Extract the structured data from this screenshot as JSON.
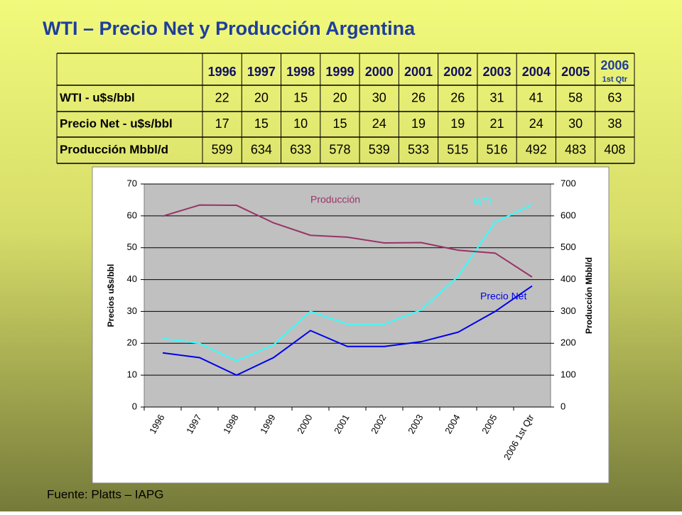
{
  "title": "WTI – Precio Net y Producción Argentina",
  "table": {
    "columns": [
      "1996",
      "1997",
      "1998",
      "1999",
      "2000",
      "2001",
      "2002",
      "2003",
      "2004",
      "2005",
      "2006"
    ],
    "column_note": "1st Qtr",
    "rows": [
      {
        "label": "WTI - u$s/bbl",
        "values": [
          22,
          20,
          15,
          20,
          30,
          26,
          26,
          31,
          41,
          58,
          63
        ]
      },
      {
        "label": "Precio Net - u$s/bbl",
        "values": [
          17,
          15,
          10,
          15,
          24,
          19,
          19,
          21,
          24,
          30,
          38
        ]
      },
      {
        "label": "Producción Mbbl/d",
        "values": [
          599,
          634,
          633,
          578,
          539,
          533,
          515,
          516,
          492,
          483,
          408
        ]
      }
    ]
  },
  "chart_data": {
    "type": "line",
    "categories": [
      "1996",
      "1997",
      "1998",
      "1999",
      "2000",
      "2001",
      "2002",
      "2003",
      "2004",
      "2005",
      "2006 1st Qtr"
    ],
    "y_label": "Precios u$s/bbl",
    "y2_label": "Producción Mbbl/d",
    "ylim": [
      0,
      70
    ],
    "yticks": [
      0,
      10,
      20,
      30,
      40,
      50,
      60,
      70
    ],
    "y2lim": [
      0,
      700
    ],
    "y2ticks": [
      0,
      100,
      200,
      300,
      400,
      500,
      600,
      700
    ],
    "grid": true,
    "series": [
      {
        "name": "WTI",
        "color": "#33ffff",
        "values": [
          21.5,
          20,
          14.5,
          19.5,
          30,
          26,
          26,
          30.5,
          41,
          58,
          63.5
        ]
      },
      {
        "name": "Precio Net",
        "color": "#0000ee",
        "values": [
          17,
          15.5,
          10,
          15.5,
          24,
          19,
          19,
          20.5,
          23.5,
          30,
          38
        ]
      },
      {
        "name": "Producción",
        "color": "#993366",
        "axis": "y2",
        "values": [
          599,
          634,
          633,
          578,
          539,
          533,
          515,
          516,
          492,
          483,
          408
        ]
      }
    ]
  },
  "footer": "Fuente: Platts – IAPG"
}
